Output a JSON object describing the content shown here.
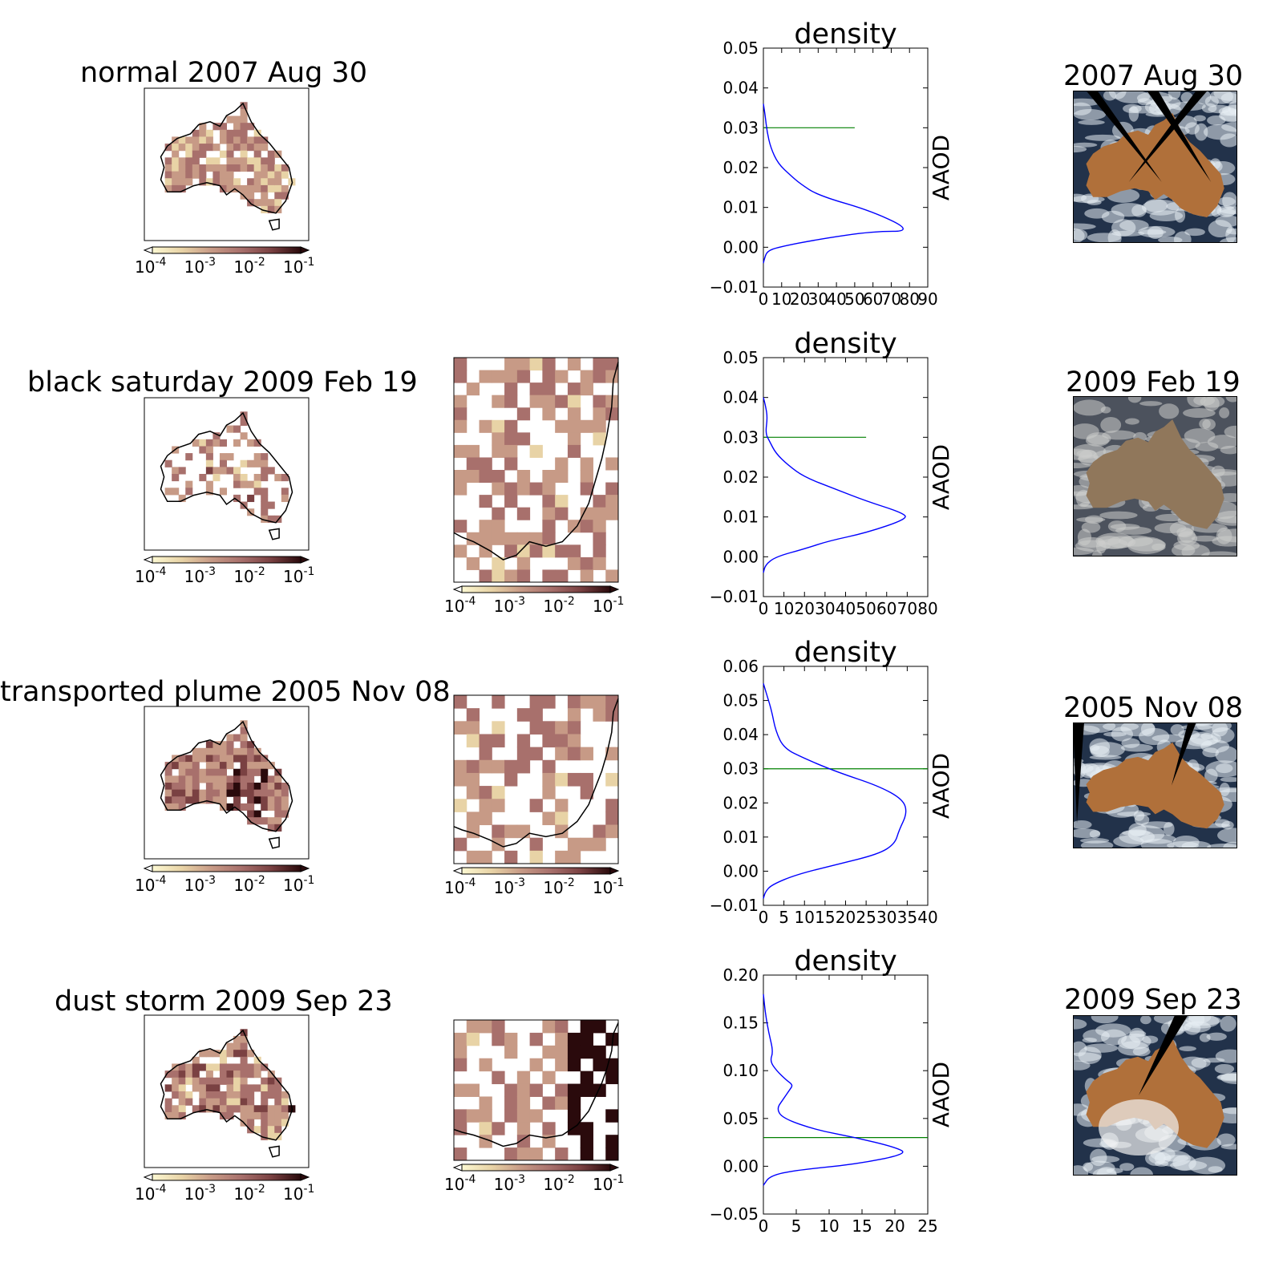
{
  "rows": [
    {
      "map_title": "normal 2007 Aug 30",
      "has_zoom_map": false,
      "photo_title": "2007 Aug 30"
    },
    {
      "map_title": "black saturday 2009 Feb 19",
      "has_zoom_map": true,
      "photo_title": "2009 Feb 19"
    },
    {
      "map_title": "transported plume 2005 Nov 08",
      "has_zoom_map": true,
      "photo_title": "2005 Nov 08"
    },
    {
      "map_title": "dust storm 2009 Sep 23",
      "has_zoom_map": true,
      "photo_title": "2009 Sep 23"
    }
  ],
  "colorbar": {
    "ticks": [
      {
        "base": "10",
        "exp": "-4"
      },
      {
        "base": "10",
        "exp": "-3"
      },
      {
        "base": "10",
        "exp": "-2"
      },
      {
        "base": "10",
        "exp": "-1"
      }
    ],
    "colors": [
      "#fcf8d2",
      "#e8d3a6",
      "#c79a86",
      "#a8706c",
      "#7a4142",
      "#2a0a0c"
    ]
  },
  "colors": {
    "density_line": "#0000ff",
    "threshold_line": "#008000",
    "land_outline": "#000000"
  },
  "chart_data": [
    {
      "type": "line",
      "title": "density",
      "xlabel": "",
      "ylabel": "AAOD",
      "xlim": [
        0,
        90
      ],
      "ylim": [
        -0.01,
        0.05
      ],
      "xticks": [
        "0",
        "10",
        "20",
        "30",
        "40",
        "50",
        "60",
        "70",
        "80",
        "90"
      ],
      "yticks": [
        "−0.01",
        "0.00",
        "0.01",
        "0.02",
        "0.03",
        "0.04",
        "0.05"
      ],
      "threshold": {
        "y": 0.03,
        "x_end": 50
      },
      "density": {
        "x": [
          0,
          0.5,
          2,
          8,
          30,
          60,
          82,
          60,
          30,
          20,
          15,
          8,
          4,
          2,
          1,
          0
        ],
        "y": [
          -0.004,
          -0.003,
          -0.001,
          0.0,
          0.002,
          0.004,
          0.004,
          0.009,
          0.013,
          0.016,
          0.018,
          0.021,
          0.025,
          0.029,
          0.033,
          0.036
        ]
      }
    },
    {
      "type": "line",
      "title": "density",
      "xlabel": "",
      "ylabel": "AAOD",
      "xlim": [
        0,
        80
      ],
      "ylim": [
        -0.01,
        0.05
      ],
      "xticks": [
        "0",
        "10",
        "20",
        "30",
        "40",
        "50",
        "60",
        "70",
        "80"
      ],
      "yticks": [
        "−0.01",
        "0.00",
        "0.01",
        "0.02",
        "0.03",
        "0.04",
        "0.05"
      ],
      "threshold": {
        "y": 0.03,
        "x_end": 50
      },
      "density": {
        "x": [
          0,
          1,
          6,
          20,
          32,
          50,
          70,
          68,
          50,
          35,
          20,
          12,
          6,
          3,
          1,
          2,
          1,
          0
        ],
        "y": [
          -0.004,
          -0.002,
          0.0,
          0.002,
          0.004,
          0.006,
          0.0095,
          0.011,
          0.014,
          0.017,
          0.02,
          0.023,
          0.026,
          0.029,
          0.031,
          0.035,
          0.038,
          0.04
        ]
      }
    },
    {
      "type": "line",
      "title": "density",
      "xlabel": "",
      "ylabel": "AAOD",
      "xlim": [
        0,
        40
      ],
      "ylim": [
        -0.01,
        0.06
      ],
      "xticks": [
        "0",
        "5",
        "10",
        "15",
        "20",
        "25",
        "30",
        "35",
        "40"
      ],
      "yticks": [
        "−0.01",
        "0.00",
        "0.01",
        "0.02",
        "0.03",
        "0.04",
        "0.05",
        "0.06"
      ],
      "threshold": {
        "y": 0.03,
        "x_end": 40
      },
      "density": {
        "x": [
          0,
          0.5,
          2,
          8,
          18,
          28,
          32,
          33,
          35,
          34,
          28,
          18,
          10,
          5,
          3,
          2,
          1,
          0
        ],
        "y": [
          -0.008,
          -0.006,
          -0.004,
          -0.001,
          0.002,
          0.005,
          0.008,
          0.012,
          0.017,
          0.021,
          0.025,
          0.029,
          0.033,
          0.036,
          0.041,
          0.047,
          0.051,
          0.055
        ]
      }
    },
    {
      "type": "line",
      "title": "density",
      "xlabel": "",
      "ylabel": "AAOD",
      "xlim": [
        0,
        25
      ],
      "ylim": [
        -0.05,
        0.2
      ],
      "xticks": [
        "0",
        "5",
        "10",
        "15",
        "20",
        "25"
      ],
      "yticks": [
        "−0.05",
        "0.00",
        "0.05",
        "0.10",
        "0.15",
        "0.20"
      ],
      "threshold": {
        "y": 0.03,
        "x_end": 25
      },
      "density": {
        "x": [
          0,
          1,
          5,
          14,
          22,
          20,
          14,
          8,
          3,
          2,
          3,
          4,
          4.5,
          3.5,
          2,
          1,
          1.5,
          0.8,
          0.3,
          0
        ],
        "y": [
          -0.02,
          -0.01,
          -0.004,
          0.002,
          0.013,
          0.02,
          0.03,
          0.038,
          0.05,
          0.06,
          0.07,
          0.08,
          0.085,
          0.09,
          0.1,
          0.11,
          0.12,
          0.14,
          0.16,
          0.18
        ]
      }
    }
  ]
}
